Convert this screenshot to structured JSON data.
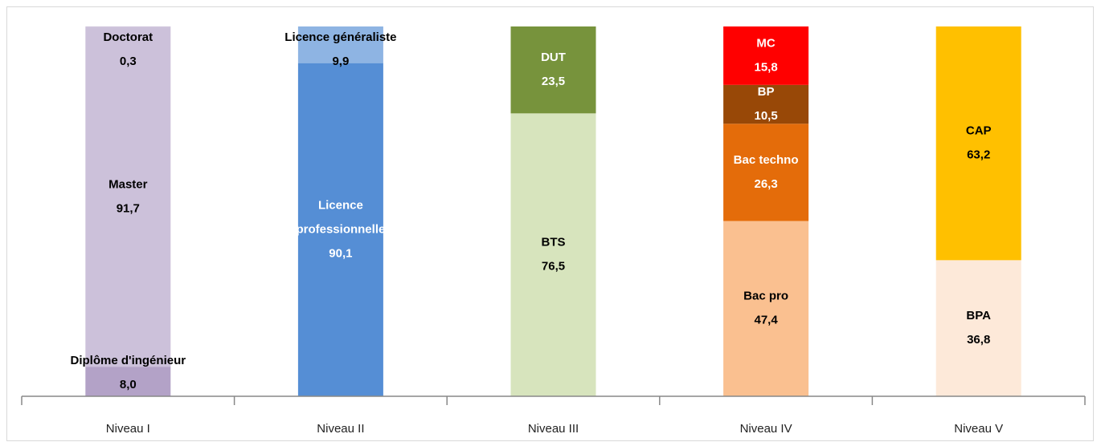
{
  "chart_data": {
    "type": "bar",
    "stacked": true,
    "categories": [
      "Niveau I",
      "Niveau II",
      "Niveau III",
      "Niveau IV",
      "Niveau V"
    ],
    "ylim": [
      0,
      100
    ],
    "series": [
      {
        "name": "Diplôme d'ingénieur",
        "color": "#b3a2c7",
        "values": [
          8.0,
          null,
          null,
          null,
          null
        ],
        "value_labels": [
          "8,0",
          null,
          null,
          null,
          null
        ]
      },
      {
        "name": "Master",
        "color": "#ccc1da",
        "values": [
          91.7,
          null,
          null,
          null,
          null
        ],
        "value_labels": [
          "91,7",
          null,
          null,
          null,
          null
        ]
      },
      {
        "name": "Doctorat",
        "color": "#ccc1da",
        "values": [
          0.3,
          null,
          null,
          null,
          null
        ],
        "value_labels": [
          "0,3",
          null,
          null,
          null,
          null
        ]
      },
      {
        "name": "Licence professionnelle",
        "color": "#558ed5",
        "values": [
          null,
          90.1,
          null,
          null,
          null
        ],
        "value_labels": [
          null,
          "90,1",
          null,
          null,
          null
        ]
      },
      {
        "name": "Licence généraliste",
        "color": "#8eb4e3",
        "values": [
          null,
          9.9,
          null,
          null,
          null
        ],
        "value_labels": [
          null,
          "9,9",
          null,
          null,
          null
        ]
      },
      {
        "name": "BTS",
        "color": "#d7e4bd",
        "values": [
          null,
          null,
          76.5,
          null,
          null
        ],
        "value_labels": [
          null,
          null,
          "76,5",
          null,
          null
        ]
      },
      {
        "name": "DUT",
        "color": "#77933c",
        "values": [
          null,
          null,
          23.5,
          null,
          null
        ],
        "value_labels": [
          null,
          null,
          "23,5",
          null,
          null
        ]
      },
      {
        "name": "Bac pro",
        "color": "#fac090",
        "values": [
          null,
          null,
          null,
          47.4,
          null
        ],
        "value_labels": [
          null,
          null,
          null,
          "47,4",
          null
        ]
      },
      {
        "name": "Bac techno",
        "color": "#e46c0a",
        "values": [
          null,
          null,
          null,
          26.3,
          null
        ],
        "value_labels": [
          null,
          null,
          null,
          "26,3",
          null
        ]
      },
      {
        "name": "BP",
        "color": "#984807",
        "values": [
          null,
          null,
          null,
          10.5,
          null
        ],
        "value_labels": [
          null,
          null,
          null,
          "10,5",
          null
        ]
      },
      {
        "name": "MC",
        "color": "#ff0000",
        "values": [
          null,
          null,
          null,
          15.8,
          null
        ],
        "value_labels": [
          null,
          null,
          null,
          "15,8",
          null
        ]
      },
      {
        "name": "BPA",
        "color": "#fde9d9",
        "values": [
          null,
          null,
          null,
          null,
          36.8
        ],
        "value_labels": [
          null,
          null,
          null,
          null,
          "36,8"
        ]
      },
      {
        "name": "CAP",
        "color": "#ffc000",
        "values": [
          null,
          null,
          null,
          null,
          63.2
        ],
        "value_labels": [
          null,
          null,
          null,
          null,
          "63,2"
        ]
      }
    ]
  }
}
